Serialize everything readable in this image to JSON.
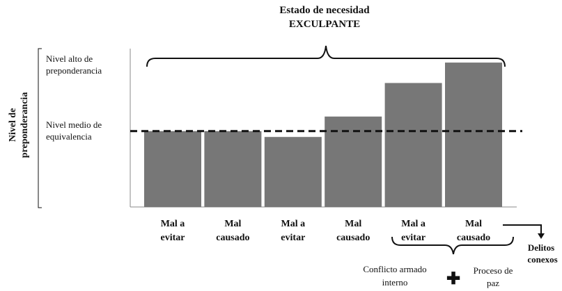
{
  "chart_data": {
    "type": "bar",
    "title_line1": "Estado de necesidad",
    "title_line2": "EXCULPANTE",
    "ylabel_line1": "Nivel de",
    "ylabel_line2": "preponderancia",
    "y_annotations": {
      "high_line1": "Nivel alto de",
      "high_line2": "preponderancia",
      "mid_line1": "Nivel medio de",
      "mid_line2": "equivalencia"
    },
    "ylim": [
      0,
      100
    ],
    "reference_line": {
      "value": 52,
      "style": "dashed"
    },
    "categories": [
      [
        "Mal a",
        "evitar"
      ],
      [
        "Mal",
        "causado"
      ],
      [
        "Mal a",
        "evitar"
      ],
      [
        "Mal",
        "causado"
      ],
      [
        "Mal a",
        "evitar"
      ],
      [
        "Mal",
        "causado"
      ]
    ],
    "values": [
      52,
      52,
      48,
      62,
      85,
      99
    ],
    "bar_color": "#777777",
    "grid": false,
    "annotations": {
      "right_arrow_label_line1": "Delitos",
      "right_arrow_label_line2": "conexos",
      "bottom_left_line1": "Conflicto armado",
      "bottom_left_line2": "interno",
      "plus_symbol": "✚",
      "bottom_right_line1": "Proceso de",
      "bottom_right_line2": "paz"
    }
  }
}
